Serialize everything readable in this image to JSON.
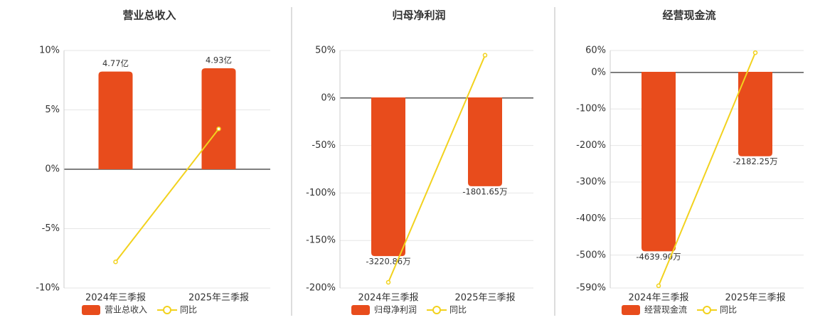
{
  "chart_data": [
    {
      "type": "bar",
      "title": "营业总收入",
      "categories": [
        "2024年三季报",
        "2025年三季报"
      ],
      "ylim": [
        -10,
        10
      ],
      "yticks": [
        {
          "value": -10,
          "label": "-10%"
        },
        {
          "value": -5,
          "label": "-5%"
        },
        {
          "value": 0,
          "label": "0%"
        },
        {
          "value": 5,
          "label": "5%"
        },
        {
          "value": 10,
          "label": "10%"
        }
      ],
      "y2lim": [
        -5.8,
        5.8
      ],
      "grid": true,
      "series": [
        {
          "name": "营业总收入",
          "type": "bar",
          "axis": "y2",
          "color": "#e84c1c",
          "values": [
            4.77,
            4.93
          ],
          "value_labels": [
            "4.77亿",
            "4.93亿"
          ]
        },
        {
          "name": "同比",
          "type": "line",
          "color": "#f2d21e",
          "values": [
            -7.8,
            3.4
          ]
        }
      ]
    },
    {
      "type": "bar",
      "title": "归母净利润",
      "categories": [
        "2024年三季报",
        "2025年三季报"
      ],
      "ylim": [
        -200,
        50
      ],
      "yticks": [
        {
          "value": -200,
          "label": "-200%"
        },
        {
          "value": -150,
          "label": "-150%"
        },
        {
          "value": -100,
          "label": "-100%"
        },
        {
          "value": -50,
          "label": "-50%"
        },
        {
          "value": 0,
          "label": "0%"
        },
        {
          "value": 50,
          "label": "50%"
        }
      ],
      "y2lim": [
        -3868,
        952
      ],
      "grid": true,
      "series": [
        {
          "name": "归母净利润",
          "type": "bar",
          "axis": "y2",
          "color": "#e84c1c",
          "values": [
            -3220.86,
            -1801.65
          ],
          "value_labels": [
            "-3220.86万",
            "-1801.65万"
          ]
        },
        {
          "name": "同比",
          "type": "line",
          "color": "#f2d21e",
          "values": [
            -194,
            45
          ]
        }
      ]
    },
    {
      "type": "bar",
      "title": "经营现金流",
      "categories": [
        "2024年三季报",
        "2025年三季报"
      ],
      "ylim": [
        -590,
        60
      ],
      "yticks": [
        {
          "value": -590,
          "label": "-590%"
        },
        {
          "value": -500,
          "label": "-500%"
        },
        {
          "value": -400,
          "label": "-400%"
        },
        {
          "value": -300,
          "label": "-300%"
        },
        {
          "value": -200,
          "label": "-200%"
        },
        {
          "value": -100,
          "label": "-100%"
        },
        {
          "value": 0,
          "label": "0%"
        },
        {
          "value": 60,
          "label": "60%"
        }
      ],
      "y2lim": [
        -5588,
        551
      ],
      "grid": true,
      "series": [
        {
          "name": "经营现金流",
          "type": "bar",
          "axis": "y2",
          "color": "#e84c1c",
          "values": [
            -4639.9,
            -2182.25
          ],
          "value_labels": [
            "-4639.90万",
            "-2182.25万"
          ]
        },
        {
          "name": "同比",
          "type": "line",
          "color": "#f2d21e",
          "values": [
            -584,
            54
          ]
        }
      ]
    }
  ]
}
